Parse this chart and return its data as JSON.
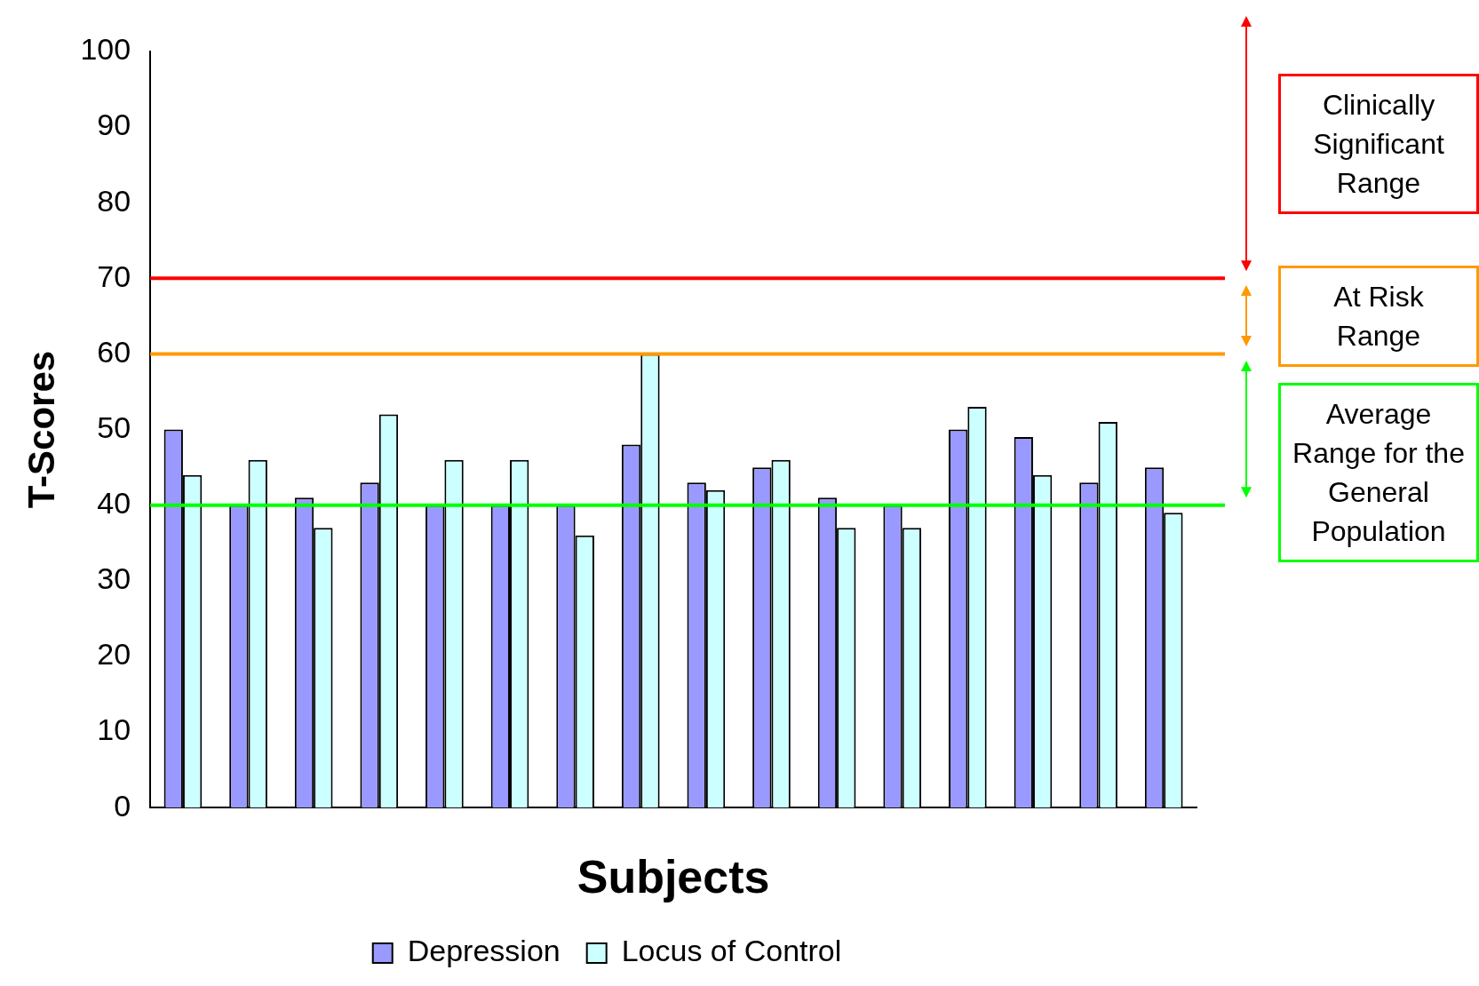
{
  "chart_data": {
    "type": "bar",
    "xlabel": "Subjects",
    "ylabel": "T-Scores",
    "categories": [
      null,
      null,
      null,
      null,
      null,
      null,
      null,
      null,
      null,
      null,
      null,
      null,
      null,
      null,
      null,
      null
    ],
    "series": [
      {
        "name": "Depression",
        "color": "#9999ff",
        "values": [
          50,
          40,
          41,
          43,
          40,
          40,
          40,
          48,
          43,
          45,
          41,
          40,
          50,
          49,
          43,
          45
        ]
      },
      {
        "name": "Locus of Control",
        "color": "#ccffff",
        "values": [
          44,
          46,
          37,
          52,
          46,
          46,
          36,
          60,
          42,
          46,
          37,
          37,
          53,
          44,
          51,
          39
        ]
      }
    ],
    "ylim": [
      0,
      100
    ],
    "yticks": [
      0,
      10,
      20,
      30,
      40,
      50,
      60,
      70,
      80,
      90,
      100
    ],
    "grid": false,
    "legend": "bottom",
    "ref_lines": [
      {
        "axis": "y",
        "value": 70,
        "color": "#ff0000"
      },
      {
        "axis": "y",
        "value": 60,
        "color": "#ff9900"
      },
      {
        "axis": "y",
        "value": 40,
        "color": "#00ff00"
      }
    ],
    "annotations": [
      "Clinically Significant Range",
      "At Risk Range",
      "Average Range for the General Population"
    ]
  }
}
